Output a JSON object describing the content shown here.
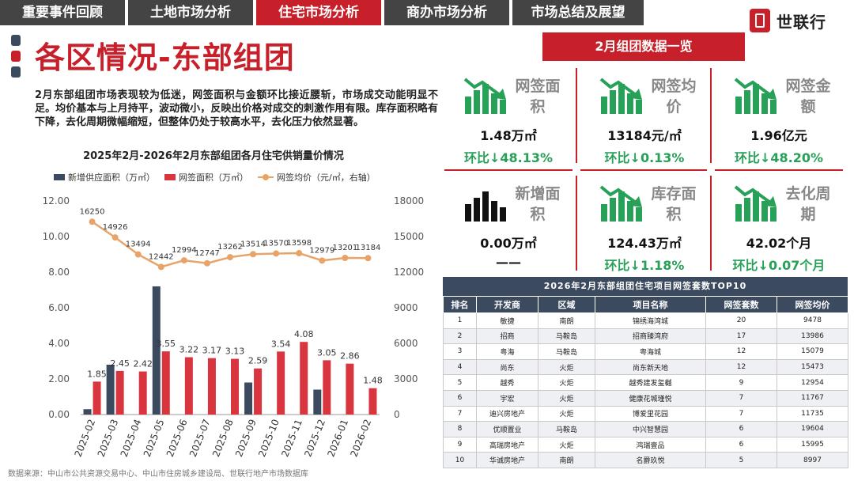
{
  "nav": {
    "tabs": [
      {
        "label": "重要事件回顾",
        "active": false
      },
      {
        "label": "土地市场分析",
        "active": false
      },
      {
        "label": "住宅市场分析",
        "active": true
      },
      {
        "label": "商办市场分析",
        "active": false
      },
      {
        "label": "市场总结及展望",
        "active": false
      }
    ]
  },
  "logo": {
    "text": "世联行",
    "icon": "brand-logo-icon"
  },
  "title": "各区情况-东部组团",
  "summary": "2月东部组团市场表现较为低迷，网签面积与金额环比接近腰斩，市场成交动能明显不足。均价基本与上月持平，波动微小，反映出价格对成交的刺激作用有限。库存面积略有下降，去化周期微幅缩短，但整体仍处于较高水平，去化压力依然显著。",
  "colors": {
    "accent_red": "#c8202a",
    "navy": "#3c4a5f",
    "bar_supply": "#3c4a5f",
    "bar_signed": "#d9353e",
    "line_price": "#e8a468",
    "positive_green": "#27a058"
  },
  "chart_data": {
    "type": "bar",
    "title": "2025年2月-2026年2月东部组团各月住宅供销量价情况",
    "categories": [
      "2025-02",
      "2025-03",
      "2025-04",
      "2025-05",
      "2025-06",
      "2025-07",
      "2025-08",
      "2025-09",
      "2025-10",
      "2025-11",
      "2025-12",
      "2026-01",
      "2026-02"
    ],
    "series": [
      {
        "name": "新增供应面积（万㎡）",
        "kind": "bar",
        "axis": "left",
        "values": [
          0.3,
          2.8,
          0,
          7.2,
          0,
          0,
          0,
          1.8,
          0,
          0,
          1.4,
          0,
          0
        ]
      },
      {
        "name": "网签面积（万㎡）",
        "kind": "bar",
        "axis": "left",
        "values": [
          1.85,
          2.45,
          2.42,
          3.55,
          3.22,
          3.17,
          3.13,
          2.59,
          3.54,
          4.08,
          3.05,
          2.86,
          1.48
        ]
      },
      {
        "name": "网签均价（元/㎡，右轴）",
        "kind": "line",
        "axis": "right",
        "values": [
          16250,
          14926,
          13494,
          12442,
          12994,
          12747,
          13262,
          13514,
          13570,
          13598,
          12979,
          13201,
          13184
        ]
      }
    ],
    "signed_labels": [
      "1.85",
      "2.45",
      "2.42",
      "3.55",
      "3.22",
      "3.17",
      "3.13",
      "2.59",
      "3.54",
      "4.08",
      "3.05",
      "2.86",
      "1.48"
    ],
    "price_labels": [
      "16250",
      "14926",
      "13494",
      "12442",
      "12994",
      "12747",
      "13262",
      "13514",
      "13570",
      "13598",
      "12979",
      "13201",
      "13184"
    ],
    "ylim_left": [
      0,
      12
    ],
    "yticks_left": [
      "0.00",
      "2.00",
      "4.00",
      "6.00",
      "8.00",
      "10.00",
      "12.00"
    ],
    "ylim_right": [
      0,
      18000
    ],
    "yticks_right": [
      "0",
      "3000",
      "6000",
      "9000",
      "12000",
      "15000",
      "18000"
    ],
    "legend_position": "top",
    "grid": false
  },
  "source": "数据来源：中山市公共资源交易中心、中山市住房城乡建设局、世联行地产市场数据库",
  "panel": {
    "header": "2月组团数据一览",
    "cards": [
      {
        "icon": "bar-down-icon",
        "label": "网签面积",
        "value": "1.48万㎡",
        "change": "环比↓48.13%"
      },
      {
        "icon": "bar-down-icon",
        "label": "网签均价",
        "value": "13184元/㎡",
        "change": "环比↓0.13%"
      },
      {
        "icon": "bar-down-icon",
        "label": "网签金额",
        "value": "1.96亿元",
        "change": "环比↓48.20%"
      },
      {
        "icon": "bar-chart-icon",
        "label": "新增面积",
        "value": "0.00万㎡",
        "change": "——"
      },
      {
        "icon": "bar-down-icon",
        "label": "库存面积",
        "value": "124.43万㎡",
        "change": "环比↓1.18%"
      },
      {
        "icon": "bar-down-icon",
        "label": "去化周期",
        "value": "42.02个月",
        "change": "环比↓0.07个月"
      }
    ]
  },
  "table": {
    "title": "2026年2月东部组团住宅项目网签套数TOP10",
    "headers": [
      "排名",
      "开发商",
      "区域",
      "项目名称",
      "网签套数",
      "网签均价"
    ],
    "rows": [
      [
        "1",
        "敏捷",
        "南朗",
        "锦绣海湾城",
        "20",
        "9478"
      ],
      [
        "2",
        "招商",
        "马鞍岛",
        "招商臻湾府",
        "17",
        "13986"
      ],
      [
        "3",
        "粤海",
        "马鞍岛",
        "粤海城",
        "12",
        "15079"
      ],
      [
        "4",
        "尚东",
        "火炬",
        "尚东新天地",
        "12",
        "15473"
      ],
      [
        "5",
        "越秀",
        "火炬",
        "越秀建发玺樾",
        "9",
        "12954"
      ],
      [
        "6",
        "宇宏",
        "火炬",
        "健康花城瑾悦",
        "7",
        "11767"
      ],
      [
        "7",
        "迪兴房地产",
        "火炬",
        "博爱里花园",
        "7",
        "11735"
      ],
      [
        "8",
        "优顺置业",
        "马鞍岛",
        "中兴智慧园",
        "6",
        "19604"
      ],
      [
        "9",
        "高瑞房地产",
        "火炬",
        "鸿瑞壹品",
        "6",
        "15995"
      ],
      [
        "10",
        "华诚房地产",
        "南朗",
        "名爵玖悦",
        "5",
        "8997"
      ]
    ]
  }
}
